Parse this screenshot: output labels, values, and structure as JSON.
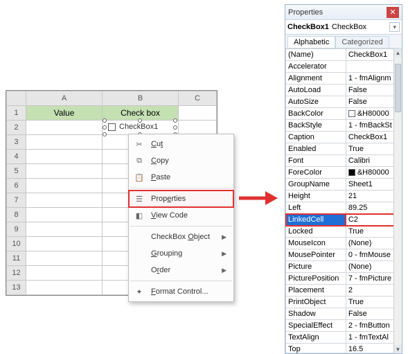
{
  "sheet": {
    "cols": [
      "A",
      "B",
      "C"
    ],
    "rows": [
      "1",
      "2",
      "3",
      "4",
      "5",
      "6",
      "7",
      "8",
      "9",
      "10",
      "11",
      "12",
      "13"
    ],
    "header_row": {
      "A": "Value",
      "B": "Check box"
    },
    "checkbox_caption": "CheckBox1"
  },
  "context_menu": {
    "cut": "Cut",
    "copy": "Copy",
    "paste": "Paste",
    "properties": "Properties",
    "view_code": "View Code",
    "checkbox_object": "CheckBox Object",
    "grouping": "Grouping",
    "order": "Order",
    "format_control": "Format Control..."
  },
  "properties": {
    "title": "Properties",
    "object_name": "CheckBox1",
    "object_type": "CheckBox",
    "tab_alpha": "Alphabetic",
    "tab_categ": "Categorized",
    "rows": [
      {
        "k": "(Name)",
        "v": "CheckBox1"
      },
      {
        "k": "Accelerator",
        "v": ""
      },
      {
        "k": "Alignment",
        "v": "1 - fmAlignm"
      },
      {
        "k": "AutoLoad",
        "v": "False"
      },
      {
        "k": "AutoSize",
        "v": "False"
      },
      {
        "k": "BackColor",
        "v": "&H80000",
        "sw": "#ffffff"
      },
      {
        "k": "BackStyle",
        "v": "1 - fmBackSt"
      },
      {
        "k": "Caption",
        "v": "CheckBox1"
      },
      {
        "k": "Enabled",
        "v": "True"
      },
      {
        "k": "Font",
        "v": "Calibri"
      },
      {
        "k": "ForeColor",
        "v": "&H80000",
        "sw": "#000000"
      },
      {
        "k": "GroupName",
        "v": "Sheet1"
      },
      {
        "k": "Height",
        "v": "21"
      },
      {
        "k": "Left",
        "v": "89.25"
      },
      {
        "k": "LinkedCell",
        "v": "C2",
        "selected": true,
        "red": true
      },
      {
        "k": "Locked",
        "v": "True"
      },
      {
        "k": "MouseIcon",
        "v": "(None)"
      },
      {
        "k": "MousePointer",
        "v": "0 - fmMouse"
      },
      {
        "k": "Picture",
        "v": "(None)"
      },
      {
        "k": "PicturePosition",
        "v": "7 - fmPicture"
      },
      {
        "k": "Placement",
        "v": "2"
      },
      {
        "k": "PrintObject",
        "v": "True"
      },
      {
        "k": "Shadow",
        "v": "False"
      },
      {
        "k": "SpecialEffect",
        "v": "2 - fmButton"
      },
      {
        "k": "TextAlign",
        "v": "1 - fmTextAl"
      },
      {
        "k": "Top",
        "v": "16.5"
      }
    ]
  }
}
